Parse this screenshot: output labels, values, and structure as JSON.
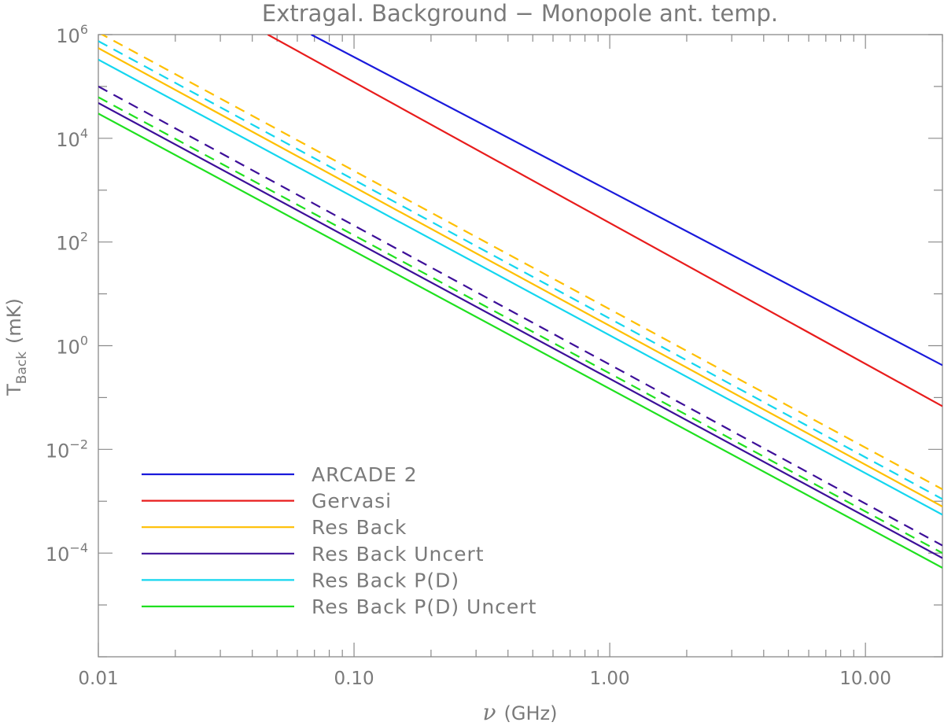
{
  "chart_data": {
    "type": "line",
    "title": "Extragal. Background − Monopole ant. temp.",
    "xlabel": {
      "symbol": "ν",
      "unit": "(GHz)"
    },
    "ylabel": {
      "symbol": "T",
      "subscript": "Back",
      "unit": "(mK)"
    },
    "x_scale": "log",
    "y_scale": "log",
    "xlim": [
      0.01,
      20
    ],
    "ylim": [
      1e-06,
      1000000
    ],
    "x_ticks": [
      {
        "value": 0.01,
        "label": "0.01"
      },
      {
        "value": 0.1,
        "label": "0.10"
      },
      {
        "value": 1,
        "label": "1.00"
      },
      {
        "value": 10,
        "label": "10.00"
      }
    ],
    "y_ticks": [
      {
        "value": 1000000,
        "base": "10",
        "exp": "6"
      },
      {
        "value": 10000,
        "base": "10",
        "exp": "4"
      },
      {
        "value": 100,
        "base": "10",
        "exp": "2"
      },
      {
        "value": 1,
        "base": "10",
        "exp": "0"
      },
      {
        "value": 0.01,
        "base": "10",
        "exp": "−2"
      },
      {
        "value": 0.0001,
        "base": "10",
        "exp": "−4"
      }
    ],
    "legend_position": "bottom-left",
    "series": [
      {
        "name": "ARCADE 2",
        "color": "#1a1adb",
        "dash": false,
        "x": [
          0.068,
          20
        ],
        "y": [
          1000000,
          0.42
        ]
      },
      {
        "name": "Gervasi",
        "color": "#e81c1c",
        "dash": false,
        "x": [
          0.046,
          20
        ],
        "y": [
          1000000,
          0.068
        ]
      },
      {
        "name": "Res Back",
        "color": "#ffbf00",
        "dash": false,
        "x": [
          0.01,
          20
        ],
        "y": [
          550000,
          0.00079
        ]
      },
      {
        "name": "Res Back Uncert",
        "color": "#3d0f99",
        "dash": false,
        "x": [
          0.01,
          20
        ],
        "y": [
          48000,
          8e-05
        ]
      },
      {
        "name": "Res Back P(D)",
        "color": "#14d6ef",
        "dash": false,
        "x": [
          0.01,
          20
        ],
        "y": [
          330000,
          0.00055
        ]
      },
      {
        "name": "Res Back P(D) Uncert",
        "color": "#1fe01f",
        "dash": false,
        "x": [
          0.01,
          20
        ],
        "y": [
          30000,
          5.2e-05
        ]
      },
      {
        "name": "",
        "color": "#ffbf00",
        "dash": true,
        "x": [
          0.01,
          20
        ],
        "y": [
          1100000,
          0.0017
        ]
      },
      {
        "name": "",
        "color": "#14d6ef",
        "dash": true,
        "x": [
          0.01,
          20
        ],
        "y": [
          750000,
          0.0011
        ]
      },
      {
        "name": "",
        "color": "#3d0f99",
        "dash": true,
        "x": [
          0.01,
          20
        ],
        "y": [
          100000,
          0.00014
        ]
      },
      {
        "name": "",
        "color": "#1fe01f",
        "dash": true,
        "x": [
          0.01,
          20
        ],
        "y": [
          62000,
          0.0001
        ]
      }
    ]
  }
}
